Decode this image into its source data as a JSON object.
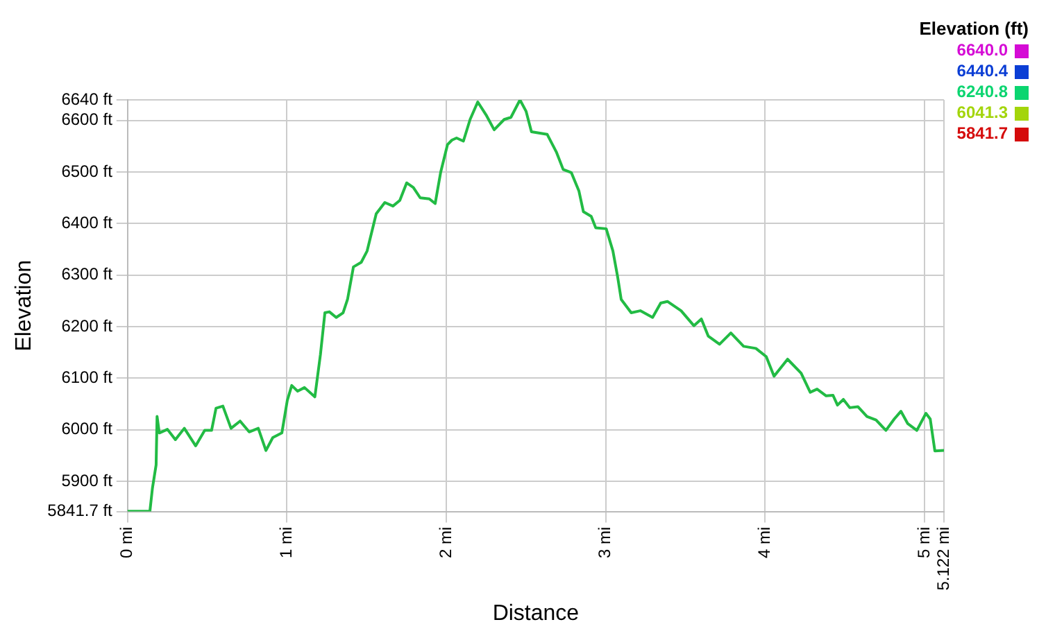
{
  "chart_data": {
    "type": "line",
    "xlabel": "Distance",
    "ylabel": "Elevation",
    "annotations": [
      "Elevation (ft)",
      "6640.0",
      "6440.4",
      "6240.8",
      "6041.3",
      "5841.7"
    ],
    "x": [
      0,
      0.14,
      0.156,
      0.179,
      0.185,
      0.199,
      0.25,
      0.3,
      0.356,
      0.427,
      0.484,
      0.527,
      0.555,
      0.598,
      0.649,
      0.706,
      0.763,
      0.82,
      0.868,
      0.911,
      0.968,
      1.002,
      1.03,
      1.067,
      1.11,
      1.175,
      1.21,
      1.238,
      1.266,
      1.309,
      1.352,
      1.38,
      1.417,
      1.466,
      1.503,
      1.56,
      1.614,
      1.665,
      1.708,
      1.751,
      1.793,
      1.836,
      1.893,
      1.93,
      1.964,
      2.007,
      2.035,
      2.064,
      2.107,
      2.149,
      2.197,
      2.249,
      2.3,
      2.363,
      2.405,
      2.462,
      2.5,
      2.534,
      2.633,
      2.69,
      2.733,
      2.784,
      2.832,
      2.86,
      2.909,
      2.937,
      3.003,
      3.045,
      3.074,
      3.097,
      3.16,
      3.217,
      3.294,
      3.345,
      3.387,
      3.473,
      3.553,
      3.6,
      3.643,
      3.714,
      3.785,
      3.865,
      3.942,
      4.007,
      4.056,
      4.141,
      4.226,
      4.283,
      4.326,
      4.383,
      4.426,
      4.454,
      4.491,
      4.531,
      4.582,
      4.639,
      4.696,
      4.758,
      4.81,
      4.852,
      4.895,
      4.952,
      5.009,
      5.036,
      5.065,
      5.122
    ],
    "values": [
      5842,
      5842,
      5887,
      5932,
      6026,
      5994,
      6001,
      5981,
      6003,
      5969,
      5999,
      5999,
      6042,
      6046,
      6003,
      6017,
      5996,
      6003,
      5960,
      5985,
      5994,
      6057,
      6086,
      6075,
      6082,
      6064,
      6146,
      6227,
      6229,
      6218,
      6227,
      6253,
      6316,
      6325,
      6347,
      6419,
      6441,
      6434,
      6445,
      6479,
      6470,
      6450,
      6448,
      6439,
      6499,
      6553,
      6562,
      6566,
      6560,
      6602,
      6636,
      6611,
      6582,
      6602,
      6606,
      6640,
      6618,
      6578,
      6573,
      6539,
      6505,
      6499,
      6463,
      6423,
      6414,
      6392,
      6390,
      6347,
      6298,
      6253,
      6227,
      6231,
      6218,
      6246,
      6249,
      6231,
      6202,
      6215,
      6182,
      6166,
      6188,
      6162,
      6158,
      6142,
      6104,
      6137,
      6110,
      6073,
      6079,
      6066,
      6067,
      6048,
      6059,
      6043,
      6045,
      6026,
      6019,
      5999,
      6021,
      6036,
      6012,
      5999,
      6032,
      6021,
      5959,
      5960
    ],
    "color": "#22bb44",
    "xlim": [
      0,
      5.122
    ],
    "xticks": [
      {
        "value": 0,
        "label": "0 mi"
      },
      {
        "value": 1,
        "label": "1 mi"
      },
      {
        "value": 2,
        "label": "2 mi"
      },
      {
        "value": 3,
        "label": "3 mi"
      },
      {
        "value": 4,
        "label": "4 mi"
      },
      {
        "value": 5,
        "label": "5 mi"
      },
      {
        "value": 5.122,
        "label": "5.122 mi"
      }
    ],
    "ylim": [
      5841.7,
      6640
    ],
    "yticks": [
      {
        "value": 5841.7,
        "label": "5841.7 ft"
      },
      {
        "value": 5900,
        "label": "5900 ft"
      },
      {
        "value": 6000,
        "label": "6000 ft"
      },
      {
        "value": 6100,
        "label": "6100 ft"
      },
      {
        "value": 6200,
        "label": "6200 ft"
      },
      {
        "value": 6300,
        "label": "6300 ft"
      },
      {
        "value": 6400,
        "label": "6400 ft"
      },
      {
        "value": 6500,
        "label": "6500 ft"
      },
      {
        "value": 6600,
        "label": "6600 ft"
      },
      {
        "value": 6640,
        "label": "6640 ft"
      }
    ],
    "grid": true,
    "legend": false,
    "marker": "none",
    "line_style": "solid"
  }
}
